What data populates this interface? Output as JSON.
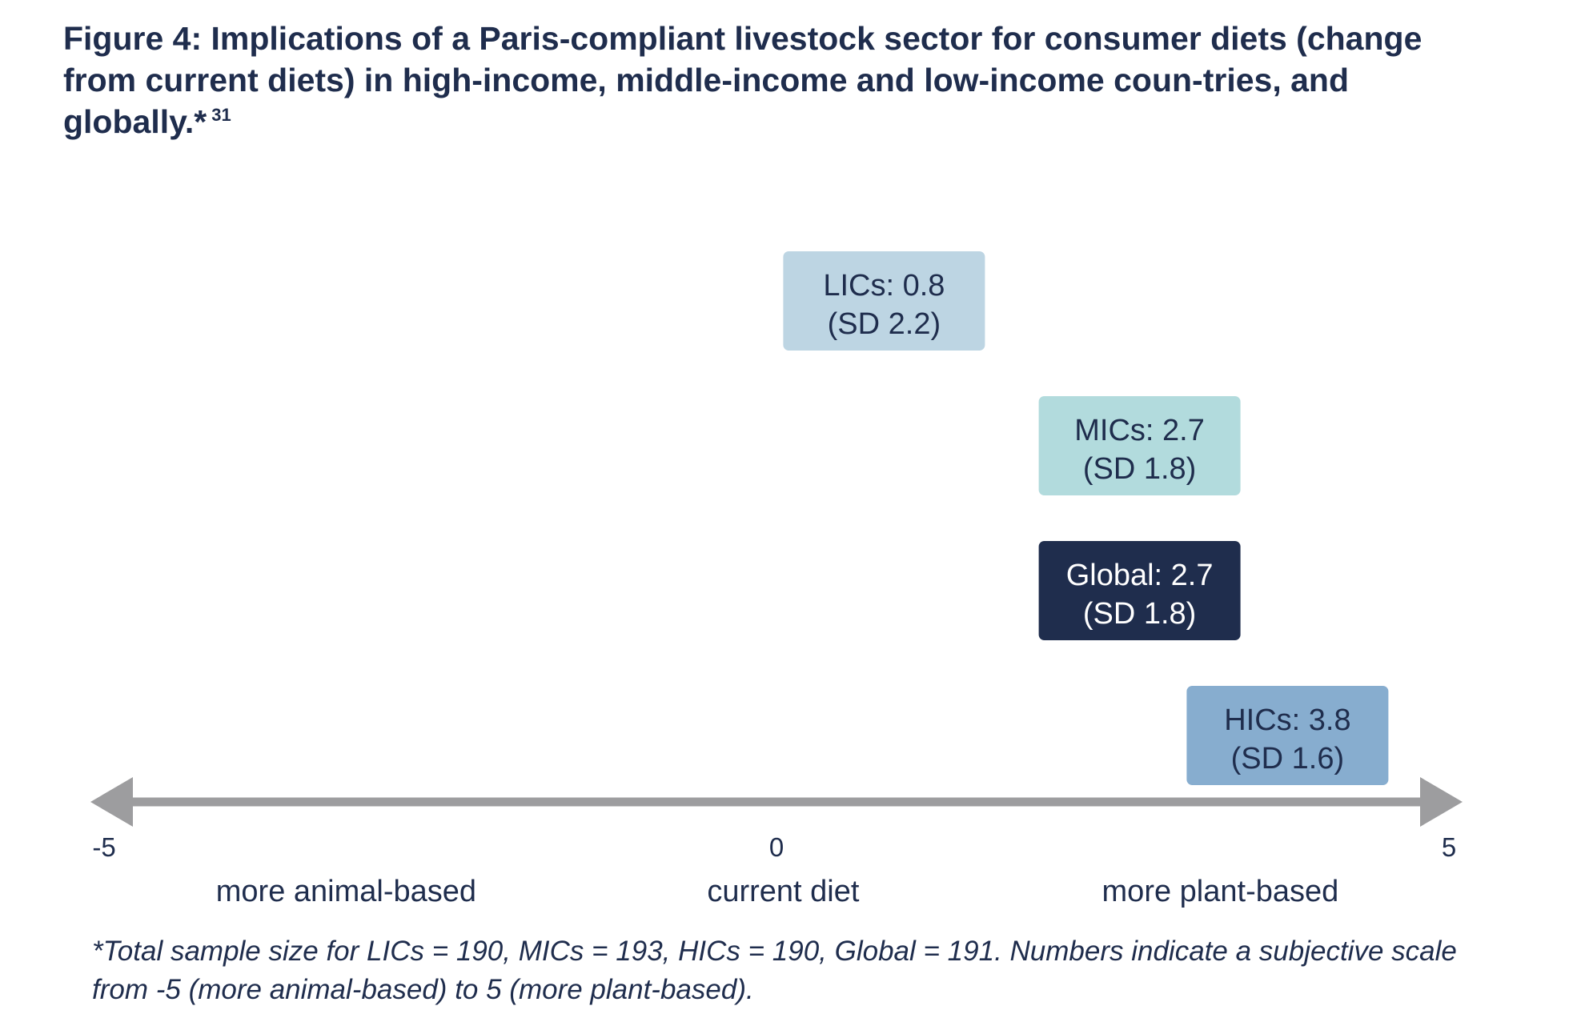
{
  "title": "Figure 4: Implications of a Paris-compliant livestock sector for consumer diets (change from current diets) in high-income, middle-income and low-income coun-tries, and globally.*",
  "title_ref": "31",
  "footnote": "*Total sample size for LICs = 190, MICs = 193, HICs = 190, Global = 191. Numbers indicate a subjective scale from -5 (more animal-based) to 5 (more plant-based).",
  "chart_data": {
    "type": "scatter",
    "xlim": [
      -5,
      5
    ],
    "grid": false,
    "axis": {
      "ticks": [
        {
          "value": -5,
          "label": "-5"
        },
        {
          "value": 0,
          "label": "0"
        },
        {
          "value": 5,
          "label": "5"
        }
      ],
      "region_labels": [
        {
          "label": "more animal-based",
          "center": -3.2
        },
        {
          "label": "current diet",
          "center": 0.05
        },
        {
          "label": "more plant-based",
          "center": 3.3
        }
      ]
    },
    "points": [
      {
        "name": "LICs",
        "label": "LICs: 0.8",
        "value": 0.8,
        "sd": 2.2,
        "sd_label": "(SD 2.2)",
        "color": "#bdd5e3",
        "text_color": "#1f2d4d"
      },
      {
        "name": "MICs",
        "label": "MICs: 2.7",
        "value": 2.7,
        "sd": 1.8,
        "sd_label": "(SD 1.8)",
        "color": "#b2dbdd",
        "text_color": "#1f2d4d"
      },
      {
        "name": "Global",
        "label": "Global: 2.7",
        "value": 2.7,
        "sd": 1.8,
        "sd_label": "(SD 1.8)",
        "color": "#1f2d4d",
        "text_color": "#ffffff"
      },
      {
        "name": "HICs",
        "label": "HICs: 3.8",
        "value": 3.8,
        "sd": 1.6,
        "sd_label": "(SD 1.6)",
        "color": "#87adcf",
        "text_color": "#1f2d4d"
      }
    ],
    "colors": {
      "axis": "#9d9d9f",
      "text": "#1f2d4d"
    }
  }
}
